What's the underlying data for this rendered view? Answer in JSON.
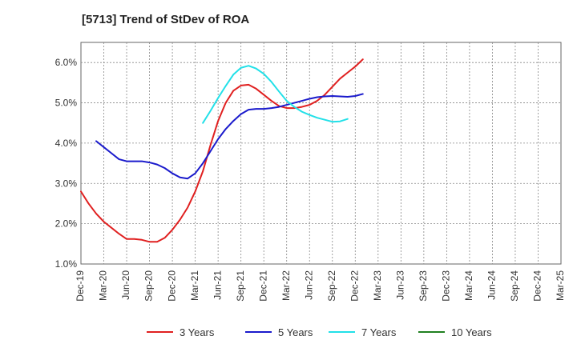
{
  "chart_data": {
    "type": "line",
    "title": "[5713]  Trend of StDev of ROA",
    "xlabel": "",
    "ylabel": "",
    "ylim": [
      1.0,
      6.5
    ],
    "yticks": [
      1.0,
      2.0,
      3.0,
      4.0,
      5.0,
      6.0
    ],
    "ytick_labels": [
      "1.0%",
      "2.0%",
      "3.0%",
      "4.0%",
      "5.0%",
      "6.0%"
    ],
    "x_tick_labels": [
      "Dec-19",
      "Mar-20",
      "Jun-20",
      "Sep-20",
      "Dec-20",
      "Mar-21",
      "Jun-21",
      "Sep-21",
      "Dec-21",
      "Mar-22",
      "Jun-22",
      "Sep-22",
      "Dec-22",
      "Mar-23",
      "Jun-23",
      "Sep-23",
      "Dec-23",
      "Mar-24",
      "Jun-24",
      "Sep-24",
      "Dec-24",
      "Mar-25"
    ],
    "grid": true,
    "legend_position": "bottom",
    "series": [
      {
        "name": "3 Years",
        "color": "#e02020",
        "values": [
          2.8,
          2.5,
          2.25,
          2.05,
          1.9,
          1.75,
          1.62,
          1.62,
          1.6,
          1.55,
          1.55,
          1.65,
          1.85,
          2.1,
          2.4,
          2.8,
          3.3,
          3.95,
          4.55,
          5.0,
          5.3,
          5.43,
          5.45,
          5.35,
          5.2,
          5.05,
          4.92,
          4.87,
          4.87,
          4.9,
          4.95,
          5.05,
          5.2,
          5.4,
          5.6,
          5.75,
          5.9,
          6.08
        ]
      },
      {
        "name": "5 Years",
        "color": "#1a1acc",
        "values": [
          null,
          null,
          4.05,
          3.9,
          3.75,
          3.6,
          3.55,
          3.55,
          3.55,
          3.52,
          3.47,
          3.38,
          3.25,
          3.15,
          3.12,
          3.25,
          3.5,
          3.8,
          4.1,
          4.35,
          4.55,
          4.72,
          4.83,
          4.85,
          4.85,
          4.87,
          4.9,
          4.95,
          5.0,
          5.05,
          5.1,
          5.14,
          5.16,
          5.17,
          5.16,
          5.15,
          5.17,
          5.22
        ]
      },
      {
        "name": "7 Years",
        "color": "#22e0e8",
        "values": [
          null,
          null,
          null,
          null,
          null,
          null,
          null,
          null,
          null,
          null,
          null,
          null,
          null,
          null,
          null,
          null,
          4.5,
          4.8,
          5.12,
          5.42,
          5.7,
          5.87,
          5.92,
          5.85,
          5.72,
          5.52,
          5.28,
          5.05,
          4.9,
          4.78,
          4.7,
          4.63,
          4.58,
          4.53,
          4.54,
          4.6
        ]
      },
      {
        "name": "10 Years",
        "color": "#208020",
        "values": []
      }
    ]
  }
}
